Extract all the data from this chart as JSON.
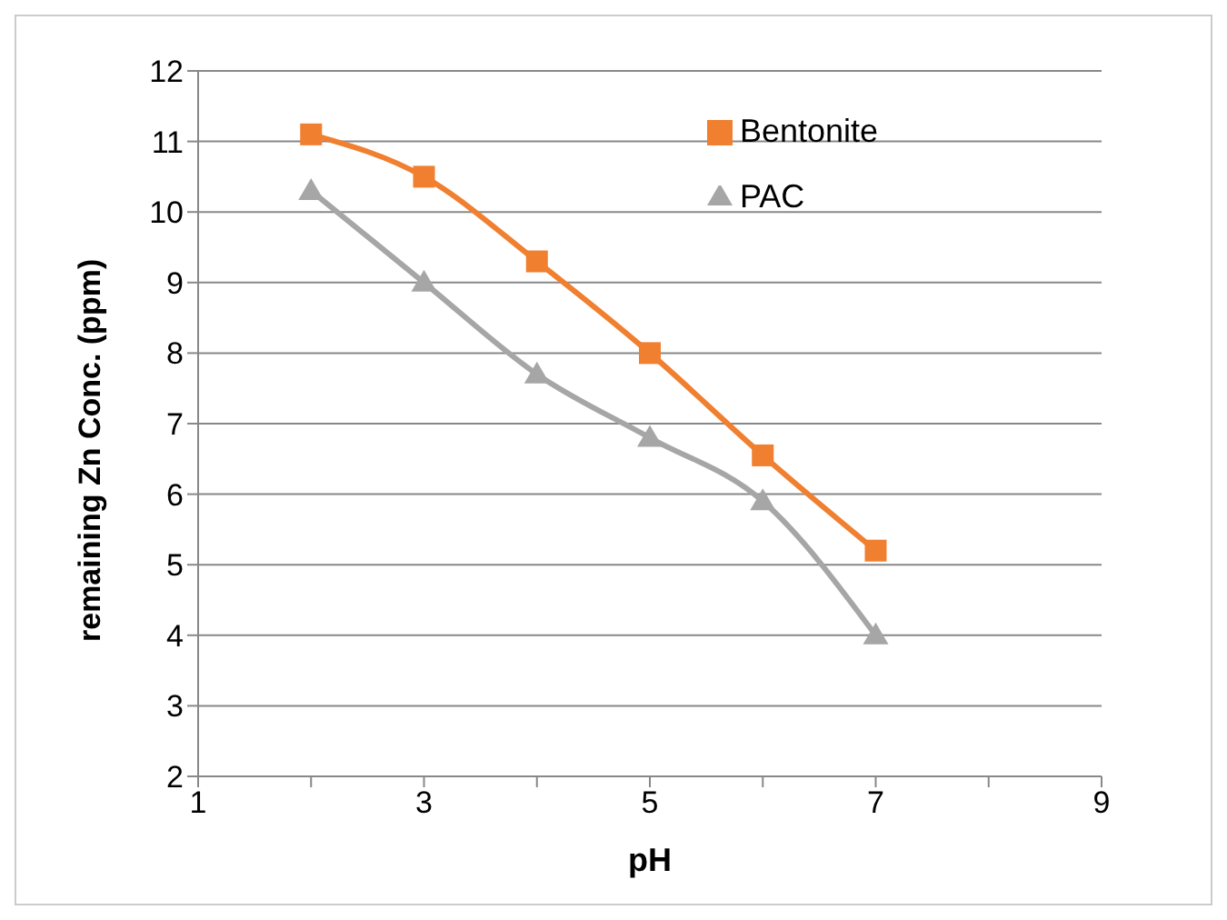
{
  "chart_data": {
    "type": "line",
    "xlabel": "pH",
    "ylabel": "remaining Zn Conc. (ppm)",
    "x": [
      2,
      3,
      4,
      5,
      6,
      7
    ],
    "series": [
      {
        "name": "Bentonite",
        "color": "#f07f2f",
        "marker": "square",
        "values": [
          11.1,
          10.5,
          9.3,
          8.0,
          6.55,
          5.2
        ]
      },
      {
        "name": "PAC",
        "color": "#a6a6a6",
        "marker": "triangle",
        "values": [
          10.3,
          9.0,
          7.7,
          6.8,
          5.9,
          4.0
        ]
      }
    ],
    "xlim": [
      1,
      9
    ],
    "xticks": [
      1,
      3,
      5,
      7,
      9
    ],
    "ylim": [
      2,
      12
    ],
    "yticks": [
      2,
      3,
      4,
      5,
      6,
      7,
      8,
      9,
      10,
      11,
      12
    ],
    "grid": "y",
    "legend": "top right"
  }
}
